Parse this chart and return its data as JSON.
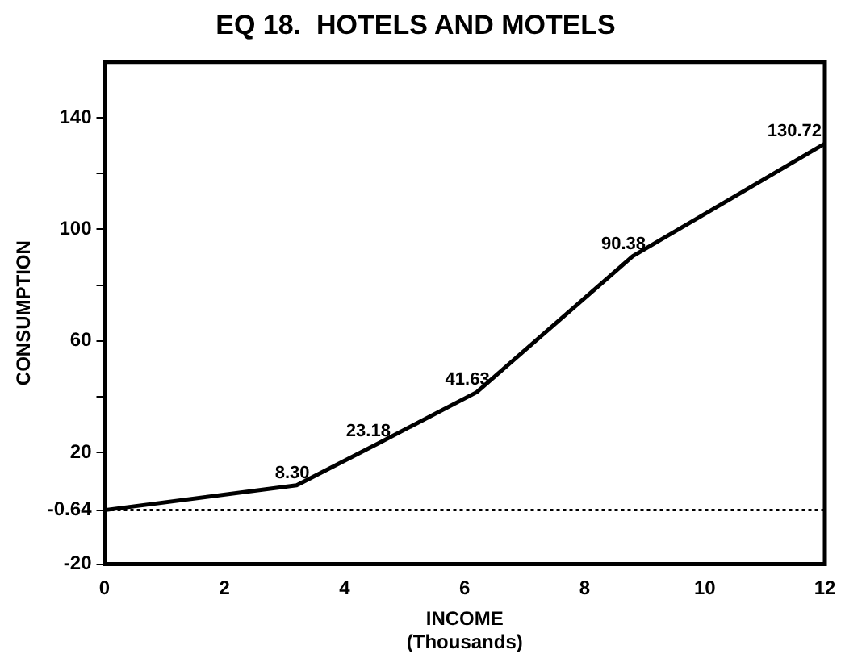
{
  "chart_data": {
    "type": "line",
    "title": "EQ 18.  HOTELS AND MOTELS",
    "xlabel": "INCOME\n(Thousands)",
    "ylabel": "CONSUMPTION",
    "x": [
      0,
      3.2,
      4.55,
      6.2,
      8.8,
      12
    ],
    "series": [
      {
        "color": "#000000",
        "values": [
          -0.64,
          8.3,
          23.18,
          41.63,
          90.38,
          130.72
        ],
        "value_labels": [
          null,
          "8.30",
          "23.18",
          "41.63",
          "90.38",
          "130.72"
        ]
      }
    ],
    "xlim": [
      0,
      12
    ],
    "xticks": [
      0,
      2,
      4,
      6,
      8,
      10,
      12
    ],
    "ylim": [
      -20,
      160
    ],
    "yticks": [
      -20,
      {
        "value": -0.64,
        "label": "-0.64"
      },
      20,
      {
        "value": 40,
        "label": null
      },
      60,
      {
        "value": 80,
        "label": null
      },
      100,
      {
        "value": 120,
        "label": null
      },
      140
    ],
    "ref_lines": [
      {
        "axis": "y",
        "value": -0.64,
        "line_style": "dotted",
        "color": "#000000"
      }
    ],
    "grid": false,
    "legend": false,
    "marker": "none",
    "line_style": "solid"
  }
}
